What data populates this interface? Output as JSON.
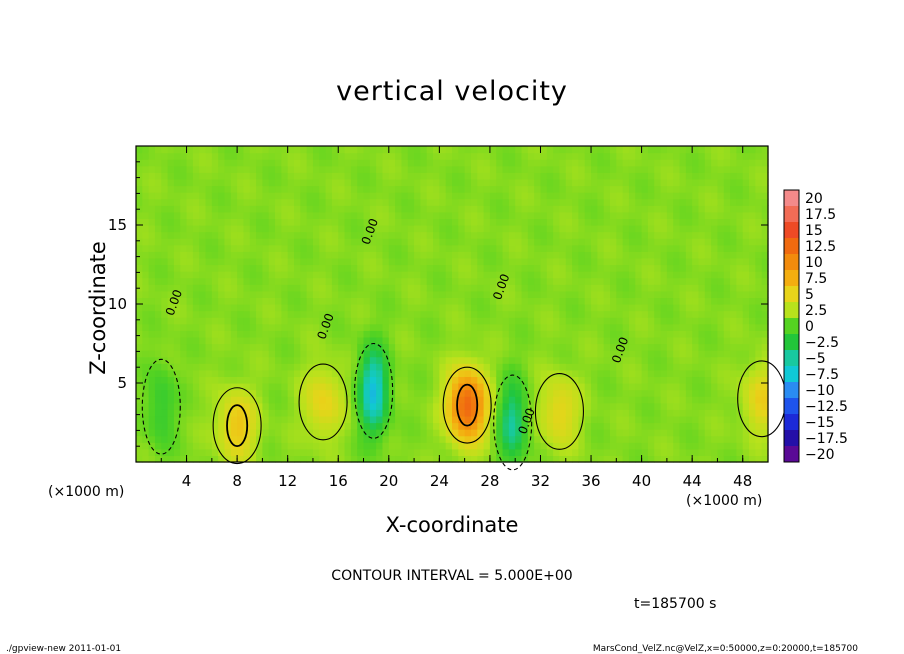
{
  "chart_data": {
    "type": "heatmap",
    "title": "vertical velocity",
    "xlabel": "X-coordinate",
    "ylabel": "Z-coordinate",
    "x_unit": "(×1000 m)",
    "y_unit": "(×1000 m)",
    "xlim": [
      0,
      50
    ],
    "ylim": [
      0,
      20
    ],
    "x_ticks": [
      4,
      8,
      12,
      16,
      20,
      24,
      28,
      32,
      36,
      40,
      44,
      48
    ],
    "y_ticks": [
      5,
      10,
      15
    ],
    "colorbar": {
      "levels": [
        20,
        17.5,
        15,
        12.5,
        10,
        7.5,
        5,
        2.5,
        0,
        -2.5,
        -5,
        -7.5,
        -10,
        -12.5,
        -15,
        -17.5,
        -20
      ],
      "colors": [
        "#f48a8a",
        "#f26c56",
        "#ee4a25",
        "#f06a10",
        "#f28b0c",
        "#f4ae10",
        "#e8d41a",
        "#b8e21c",
        "#55d321",
        "#22c63a",
        "#18c9a0",
        "#10c9d6",
        "#2a8cf2",
        "#1e54ec",
        "#1c2ad8",
        "#2410a8",
        "#5a0a96"
      ]
    },
    "contour_label": "0.00",
    "features": [
      {
        "kind": "updraft",
        "x": 8,
        "z": 2.3,
        "peak": 5
      },
      {
        "kind": "updraft",
        "x": 14.8,
        "z": 3.8,
        "peak": 4
      },
      {
        "kind": "downdraft",
        "x": 18.8,
        "z": 4.5,
        "peak": -9
      },
      {
        "kind": "updraft",
        "x": 26.2,
        "z": 3.6,
        "peak": 12
      },
      {
        "kind": "downdraft",
        "x": 29.8,
        "z": 2.5,
        "peak": -6
      },
      {
        "kind": "updraft",
        "x": 33.5,
        "z": 3.2,
        "peak": 4
      },
      {
        "kind": "updraft",
        "x": 49.5,
        "z": 4,
        "peak": 4
      },
      {
        "kind": "downdraft",
        "x": 2,
        "z": 3.5,
        "peak": -3
      }
    ]
  },
  "labels": {
    "x_unit_left": "(×1000 m)",
    "x_unit_right": "(×1000 m)",
    "contour_interval": "CONTOUR INTERVAL = 5.000E+00",
    "time": "t=185700  s",
    "footer_left": "./gpview-new   2011-01-01",
    "footer_right": "MarsCond_VelZ.nc@VelZ,x=0:50000,z=0:20000,t=185700"
  }
}
